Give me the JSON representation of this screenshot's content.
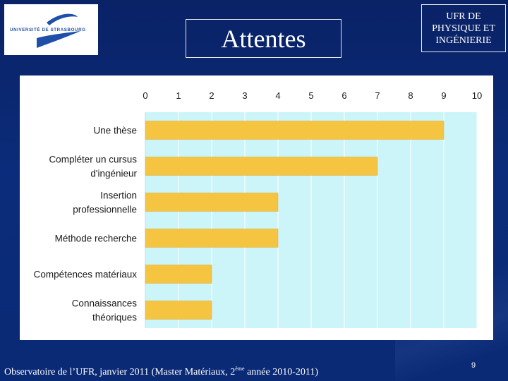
{
  "logo": {
    "text": "UNIVERSITÉ DE STRASBOURG"
  },
  "title": "Attentes",
  "header_right": "UFR DE PHYSIQUE ET INGÉNIERIE",
  "footer": {
    "prefix": "Observatoire de l’UFR, janvier 2011 (Master Matériaux, 2",
    "sup": "ème",
    "suffix": " année 2010-2011)"
  },
  "page_number": "9",
  "colors": {
    "background": "#0b2a74",
    "plot_area": "#ccf5fa",
    "bar": "#f5c542",
    "bar_edge": "#e0a820"
  },
  "chart_data": {
    "type": "bar",
    "orientation": "horizontal",
    "categories": [
      [
        "Une thèse"
      ],
      [
        "Compléter un cursus",
        "d'ingénieur"
      ],
      [
        "Insertion",
        "professionnelle"
      ],
      [
        "Méthode recherche"
      ],
      [
        "Compétences matériaux"
      ],
      [
        "Connaissances",
        "théoriques"
      ]
    ],
    "values": [
      9,
      7,
      4,
      4,
      2,
      2
    ],
    "xlim": [
      0,
      10
    ],
    "xticks": [
      "0",
      "1",
      "2",
      "3",
      "4",
      "5",
      "6",
      "7",
      "8",
      "9",
      "10"
    ],
    "axis_position": "top",
    "grid": true,
    "legend": false
  }
}
